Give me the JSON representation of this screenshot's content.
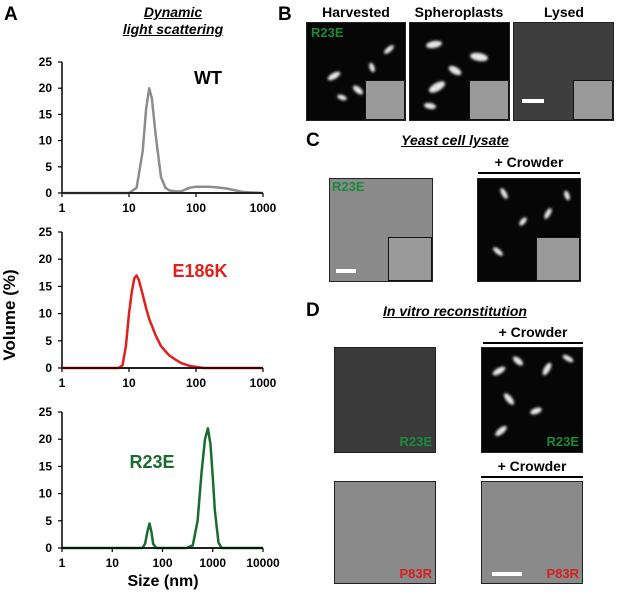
{
  "panels": {
    "A": {
      "letter": "A",
      "title_line1": "Dynamic",
      "title_line2": "light scattering",
      "ylabel": "Volume (%)",
      "xlabel": "Size (nm)"
    },
    "B": {
      "letter": "B",
      "labels": [
        "Harvested",
        "Spheroplasts",
        "Lysed"
      ],
      "tag": "R23E"
    },
    "C": {
      "letter": "C",
      "title": "Yeast cell lysate",
      "crowder": "+ Crowder",
      "tag": "R23E"
    },
    "D": {
      "letter": "D",
      "title": "In vitro reconstitution",
      "crowder_top": "+ Crowder",
      "crowder_bottom": "+ Crowder",
      "tags": [
        "R23E",
        "R23E",
        "P83R",
        "P83R"
      ]
    }
  },
  "colors": {
    "wt": "#8c8c8c",
    "e186k": "#e0201b",
    "r23e": "#1a6b2f",
    "tag_green": "#1a8a3a",
    "tag_red": "#d42020"
  },
  "chart_data": [
    {
      "type": "line",
      "series": [
        {
          "name": "WT",
          "x": [
            1,
            10,
            13,
            16,
            18,
            20,
            22,
            25,
            30,
            35,
            40,
            50,
            60,
            80,
            100,
            150,
            200,
            300,
            500,
            1000
          ],
          "y": [
            0,
            0,
            1,
            8,
            16,
            20,
            18,
            11,
            3,
            1,
            0.5,
            0.3,
            0.3,
            1,
            1.2,
            1.2,
            1.1,
            0.8,
            0.2,
            0
          ]
        }
      ],
      "x_scale": "log",
      "xlim": [
        1,
        1000
      ],
      "ylim": [
        0,
        25
      ],
      "x_ticks": [
        "1",
        "10",
        "100",
        "1000"
      ],
      "y_ticks": [
        "0",
        "5",
        "10",
        "15",
        "20",
        "25"
      ]
    },
    {
      "type": "line",
      "series": [
        {
          "name": "E186K",
          "x": [
            1,
            7,
            8,
            9,
            10,
            11,
            12,
            13,
            14,
            16,
            18,
            20,
            25,
            30,
            40,
            50,
            60,
            80,
            100,
            130,
            1000
          ],
          "y": [
            0,
            0,
            0.5,
            4,
            10,
            14,
            16.5,
            17,
            16.2,
            13.5,
            11,
            9,
            6,
            4,
            2.3,
            1.5,
            0.9,
            0.4,
            0.2,
            0,
            0
          ]
        }
      ],
      "x_scale": "log",
      "xlim": [
        1,
        1000
      ],
      "ylim": [
        0,
        25
      ],
      "x_ticks": [
        "1",
        "10",
        "100",
        "1000"
      ],
      "y_ticks": [
        "0",
        "5",
        "10",
        "15",
        "20",
        "25"
      ]
    },
    {
      "type": "line",
      "series": [
        {
          "name": "R23E",
          "x": [
            1,
            40,
            45,
            50,
            55,
            60,
            65,
            75,
            300,
            400,
            500,
            600,
            700,
            800,
            900,
            1000,
            1100,
            1300,
            1500,
            10000
          ],
          "y": [
            0,
            0,
            0.8,
            3,
            4.5,
            3,
            0.8,
            0,
            0,
            0.5,
            5,
            14,
            20,
            22,
            19,
            13,
            7,
            1,
            0,
            0
          ]
        }
      ],
      "x_scale": "log",
      "xlim": [
        1,
        10000
      ],
      "ylim": [
        0,
        25
      ],
      "x_ticks": [
        "1",
        "10",
        "100",
        "1000",
        "10000"
      ],
      "y_ticks": [
        "0",
        "5",
        "10",
        "15",
        "20",
        "25"
      ]
    }
  ]
}
